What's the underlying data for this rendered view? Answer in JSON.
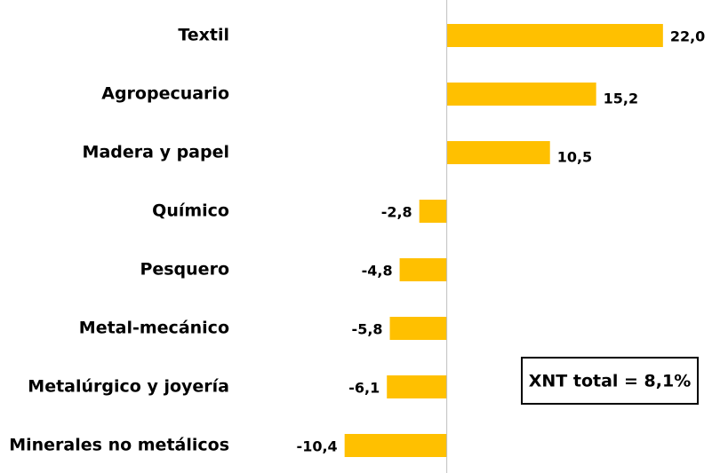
{
  "chart_data": {
    "type": "barh",
    "categories": [
      "Textil",
      "Agropecuario",
      "Madera y papel",
      "Químico",
      "Pesquero",
      "Metal-mecánico",
      "Metalúrgico y joyería",
      "Minerales no metálicos"
    ],
    "values": [
      22.0,
      15.2,
      10.5,
      -2.8,
      -4.8,
      -5.8,
      -6.1,
      -10.4
    ],
    "value_labels": [
      "22,0",
      "15,2",
      "10,5",
      "-2,8",
      "-4,8",
      "-5,8",
      "-6,1",
      "-10,4"
    ],
    "color": "#ffc000",
    "xlim": [
      -12,
      25
    ],
    "annotation": "XNT total = 8,1%"
  }
}
